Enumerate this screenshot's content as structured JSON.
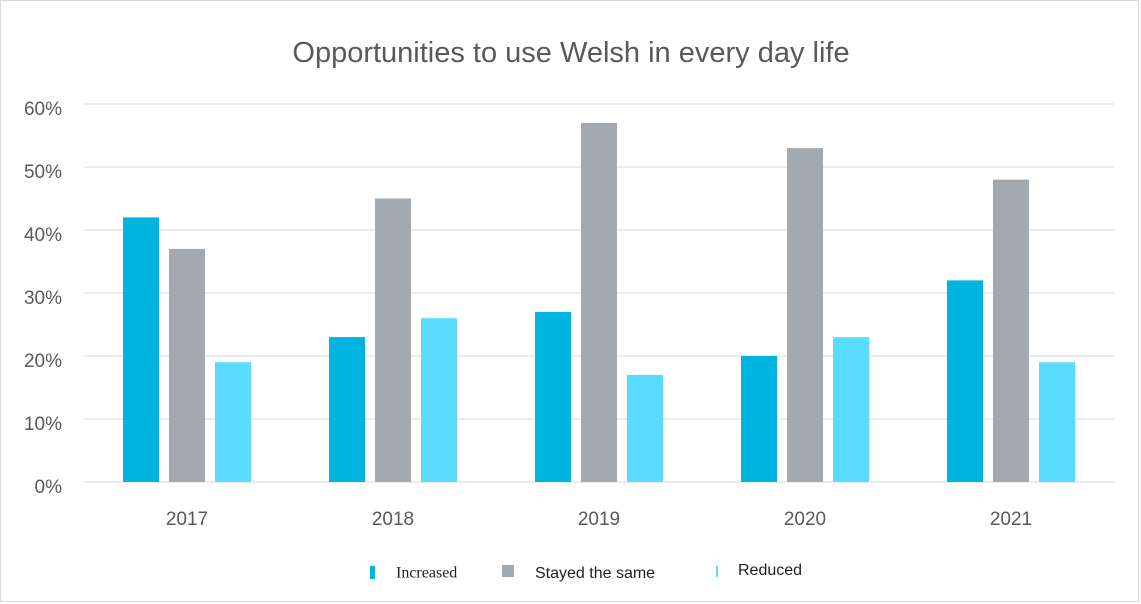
{
  "chart_data": {
    "type": "bar",
    "title": "Opportunities to use Welsh in every day life",
    "categories": [
      "2017",
      "2018",
      "2019",
      "2020",
      "2021"
    ],
    "series": [
      {
        "name": "Increased",
        "values": [
          42,
          23,
          27,
          20,
          32
        ],
        "color": "#00b4e1"
      },
      {
        "name": "Stayed the same",
        "values": [
          37,
          45,
          57,
          53,
          48
        ],
        "color": "#a2a9b0"
      },
      {
        "name": "Reduced",
        "values": [
          19,
          26,
          17,
          23,
          19
        ],
        "color": "#59dcff"
      }
    ],
    "y_ticks": [
      "0%",
      "10%",
      "20%",
      "30%",
      "40%",
      "50%",
      "60%"
    ],
    "ylim": [
      0,
      60
    ],
    "xlabel": "",
    "ylabel": "",
    "grid": true,
    "legend_position": "bottom"
  }
}
